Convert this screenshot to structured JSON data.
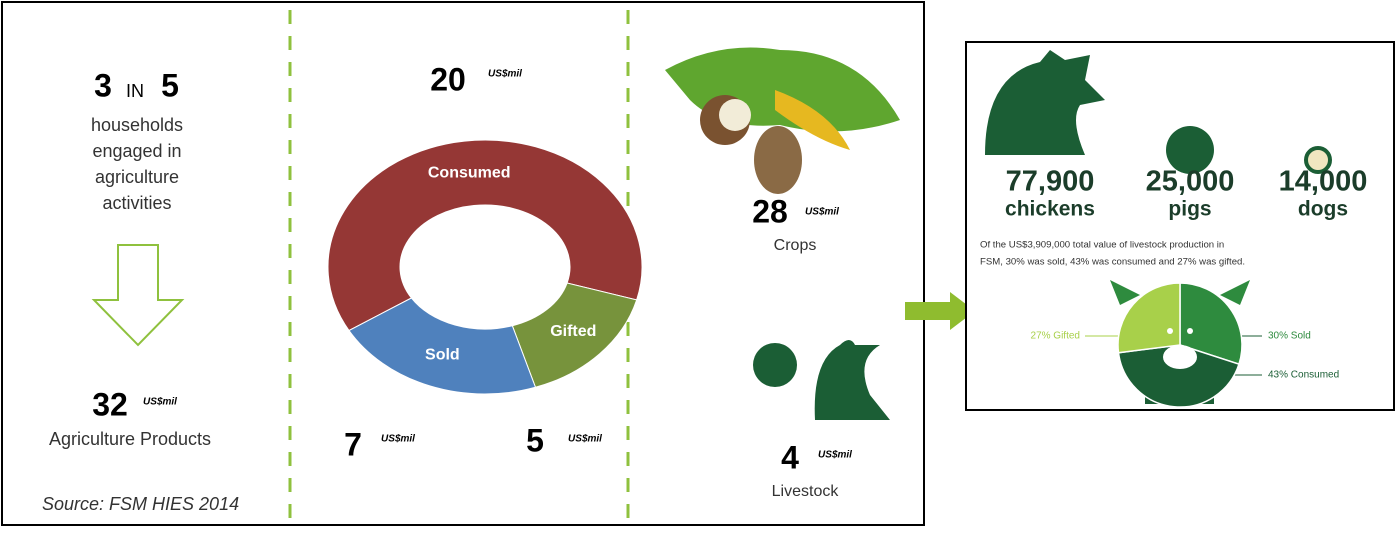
{
  "left": {
    "ratio_a": "3",
    "ratio_in": "IN",
    "ratio_b": "5",
    "caption": [
      "households",
      "engaged in",
      "agriculture",
      "activities"
    ],
    "total": "32",
    "total_label": "Agriculture Products",
    "source": "Source: FSM HIES 2014"
  },
  "unit": "US$mil",
  "crops": {
    "value": "28",
    "label": "Crops"
  },
  "livestock": {
    "value": "4",
    "label": "Livestock"
  },
  "right": {
    "stats": [
      {
        "value": "77,900",
        "label": "chickens"
      },
      {
        "value": "25,000",
        "label": "pigs"
      },
      {
        "value": "14,000",
        "label": "dogs"
      }
    ],
    "note": [
      "Of the US$3,909,000 total value of livestock production in",
      "FSM, 30% was sold, 43% was consumed and 27% was gifted."
    ]
  },
  "chart_data": [
    {
      "type": "donut",
      "categories": [
        "Consumed",
        "Gifted",
        "Sold"
      ],
      "values": [
        20,
        5,
        7
      ],
      "colors": [
        "#953735",
        "#77933c",
        "#4f81bd"
      ]
    },
    {
      "type": "pie",
      "categories": [
        "Sold",
        "Consumed",
        "Gifted"
      ],
      "values": [
        30,
        43,
        27
      ],
      "value_labels": [
        "30% Sold",
        "43% Consumed",
        "27% Gifted"
      ],
      "colors": [
        "#2e8b3e",
        "#1b5e35",
        "#a8d04a"
      ]
    }
  ]
}
